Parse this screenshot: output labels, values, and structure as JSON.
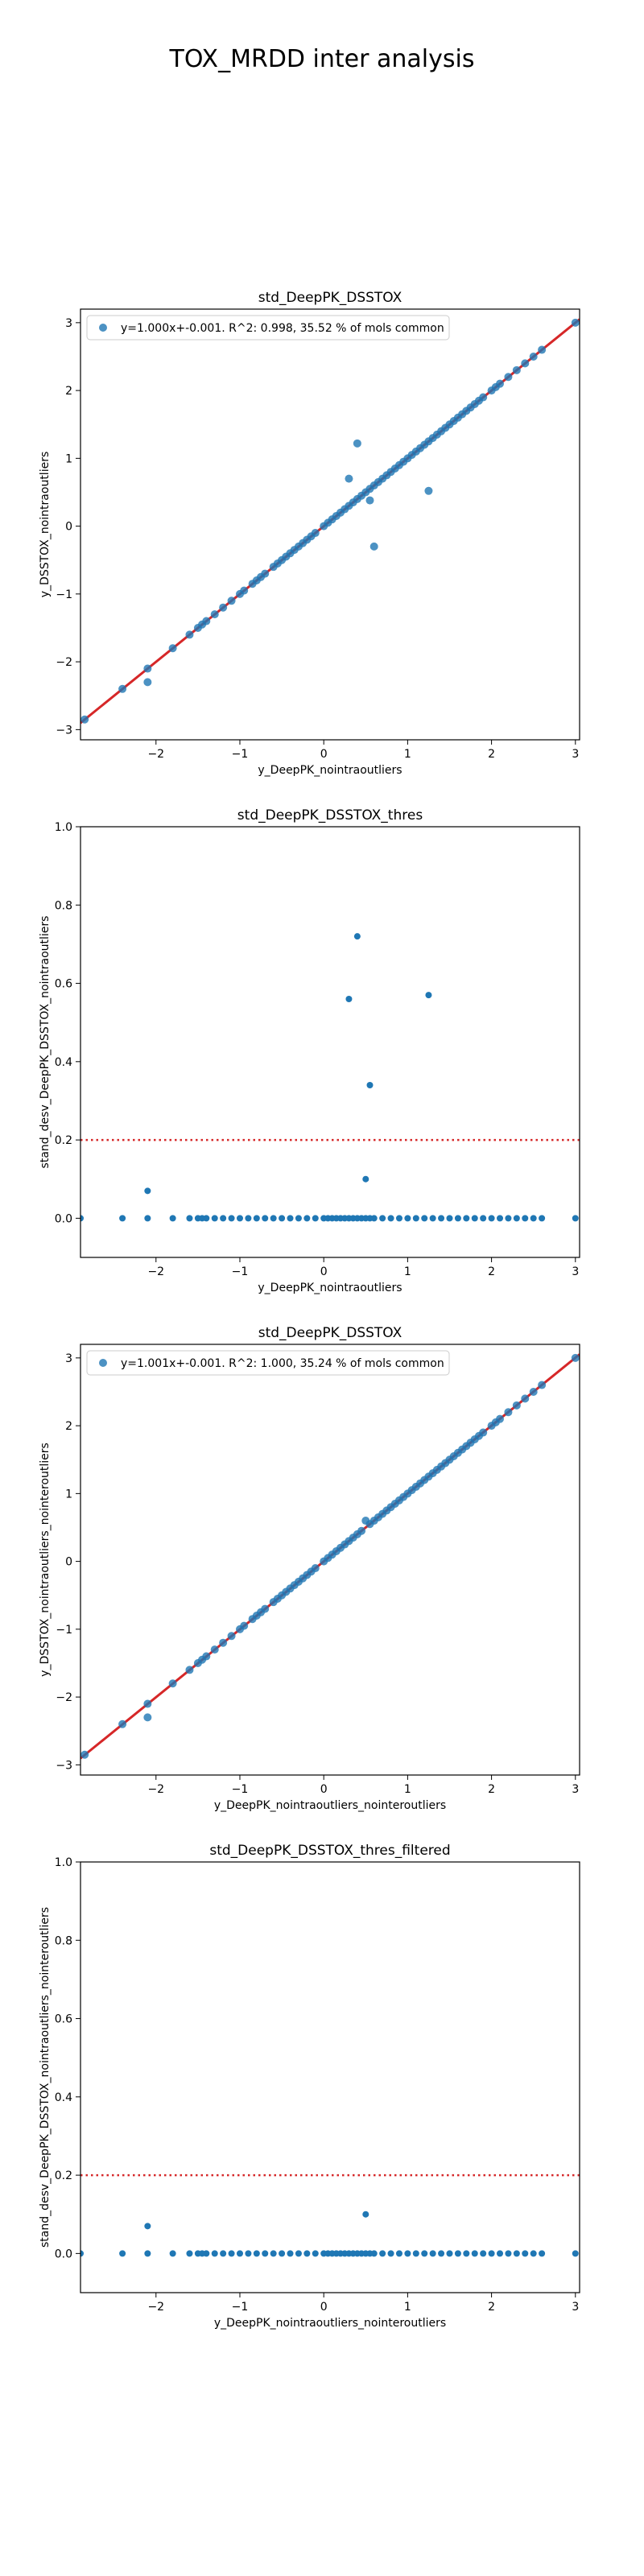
{
  "suptitle": "TOX_MRDD inter analysis",
  "colors": {
    "points": "#1f77b4",
    "fit_line": "#d62728",
    "threshold": "#d62728"
  },
  "chart_data": [
    {
      "type": "scatter",
      "title": "std_DeepPK_DSSTOX",
      "xlabel": "y_DeepPK_nointraoutliers",
      "ylabel": "y_DSSTOX_nointraoutliers",
      "xlim": [
        -2.9,
        3.05
      ],
      "ylim": [
        -3.15,
        3.2
      ],
      "xticks": [
        -2,
        -1,
        0,
        1,
        2,
        3
      ],
      "yticks": [
        -3,
        -2,
        -1,
        0,
        1,
        2,
        3
      ],
      "legend": {
        "label": "y=1.000x+-0.001. R^2: 0.998, 35.52 % of mols common",
        "placement": "top-left"
      },
      "fit_line": {
        "slope": 1.0,
        "intercept": -0.001
      },
      "points": [
        [
          -2.85,
          -2.85
        ],
        [
          -2.4,
          -2.4
        ],
        [
          -2.1,
          -2.1
        ],
        [
          -2.1,
          -2.3
        ],
        [
          -1.8,
          -1.8
        ],
        [
          -1.6,
          -1.6
        ],
        [
          -1.5,
          -1.5
        ],
        [
          -1.45,
          -1.45
        ],
        [
          -1.4,
          -1.4
        ],
        [
          -1.3,
          -1.3
        ],
        [
          -1.2,
          -1.2
        ],
        [
          -1.1,
          -1.1
        ],
        [
          -1.0,
          -1.0
        ],
        [
          -0.95,
          -0.95
        ],
        [
          -0.85,
          -0.85
        ],
        [
          -0.8,
          -0.8
        ],
        [
          -0.75,
          -0.75
        ],
        [
          -0.7,
          -0.7
        ],
        [
          -0.6,
          -0.6
        ],
        [
          -0.55,
          -0.55
        ],
        [
          -0.5,
          -0.5
        ],
        [
          -0.45,
          -0.45
        ],
        [
          -0.4,
          -0.4
        ],
        [
          -0.35,
          -0.35
        ],
        [
          -0.3,
          -0.3
        ],
        [
          -0.25,
          -0.25
        ],
        [
          -0.2,
          -0.2
        ],
        [
          -0.15,
          -0.15
        ],
        [
          -0.1,
          -0.1
        ],
        [
          0.0,
          0.0
        ],
        [
          0.05,
          0.05
        ],
        [
          0.1,
          0.1
        ],
        [
          0.15,
          0.15
        ],
        [
          0.2,
          0.2
        ],
        [
          0.25,
          0.25
        ],
        [
          0.3,
          0.3
        ],
        [
          0.35,
          0.35
        ],
        [
          0.4,
          0.4
        ],
        [
          0.45,
          0.45
        ],
        [
          0.5,
          0.5
        ],
        [
          0.55,
          0.55
        ],
        [
          0.6,
          0.6
        ],
        [
          0.65,
          0.65
        ],
        [
          0.7,
          0.7
        ],
        [
          0.75,
          0.75
        ],
        [
          0.8,
          0.8
        ],
        [
          0.85,
          0.85
        ],
        [
          0.9,
          0.9
        ],
        [
          0.95,
          0.95
        ],
        [
          1.0,
          1.0
        ],
        [
          1.05,
          1.05
        ],
        [
          1.1,
          1.1
        ],
        [
          1.15,
          1.15
        ],
        [
          1.2,
          1.2
        ],
        [
          1.25,
          1.25
        ],
        [
          1.3,
          1.3
        ],
        [
          1.35,
          1.35
        ],
        [
          1.4,
          1.4
        ],
        [
          1.45,
          1.45
        ],
        [
          1.5,
          1.5
        ],
        [
          1.55,
          1.55
        ],
        [
          1.6,
          1.6
        ],
        [
          1.65,
          1.65
        ],
        [
          1.7,
          1.7
        ],
        [
          1.75,
          1.75
        ],
        [
          1.8,
          1.8
        ],
        [
          1.85,
          1.85
        ],
        [
          1.9,
          1.9
        ],
        [
          2.0,
          2.0
        ],
        [
          2.05,
          2.05
        ],
        [
          2.1,
          2.1
        ],
        [
          2.2,
          2.2
        ],
        [
          2.3,
          2.3
        ],
        [
          2.4,
          2.4
        ],
        [
          2.5,
          2.5
        ],
        [
          2.6,
          2.6
        ],
        [
          3.0,
          3.0
        ],
        [
          0.3,
          0.7
        ],
        [
          0.4,
          1.22
        ],
        [
          0.55,
          0.38
        ],
        [
          0.6,
          -0.3
        ],
        [
          1.25,
          0.52
        ]
      ]
    },
    {
      "type": "scatter",
      "title": "std_DeepPK_DSSTOX_thres",
      "xlabel": "y_DeepPK_nointraoutliers",
      "ylabel": "stand_desv_DeepPK_DSSTOX_nointraoutliers",
      "xlim": [
        -2.9,
        3.05
      ],
      "ylim": [
        -0.1,
        1.0
      ],
      "xticks": [
        -2,
        -1,
        0,
        1,
        2,
        3
      ],
      "yticks": [
        0.0,
        0.2,
        0.4,
        0.6,
        0.8,
        1.0
      ],
      "threshold": 0.2,
      "points": [
        [
          -2.9,
          0
        ],
        [
          -2.4,
          0
        ],
        [
          -2.1,
          0.07
        ],
        [
          -2.1,
          0
        ],
        [
          -1.8,
          0
        ],
        [
          -1.6,
          0
        ],
        [
          -1.5,
          0
        ],
        [
          -1.45,
          0
        ],
        [
          -1.4,
          0
        ],
        [
          -1.3,
          0
        ],
        [
          -1.2,
          0
        ],
        [
          -1.1,
          0
        ],
        [
          -1.0,
          0
        ],
        [
          -0.9,
          0
        ],
        [
          -0.8,
          0
        ],
        [
          -0.7,
          0
        ],
        [
          -0.6,
          0
        ],
        [
          -0.5,
          0
        ],
        [
          -0.4,
          0
        ],
        [
          -0.3,
          0
        ],
        [
          -0.2,
          0
        ],
        [
          -0.1,
          0
        ],
        [
          0.0,
          0
        ],
        [
          0.05,
          0
        ],
        [
          0.1,
          0
        ],
        [
          0.15,
          0
        ],
        [
          0.2,
          0
        ],
        [
          0.25,
          0
        ],
        [
          0.3,
          0
        ],
        [
          0.35,
          0
        ],
        [
          0.4,
          0
        ],
        [
          0.45,
          0
        ],
        [
          0.5,
          0
        ],
        [
          0.55,
          0
        ],
        [
          0.6,
          0
        ],
        [
          0.7,
          0
        ],
        [
          0.8,
          0
        ],
        [
          0.9,
          0
        ],
        [
          1.0,
          0
        ],
        [
          1.1,
          0
        ],
        [
          1.2,
          0
        ],
        [
          1.3,
          0
        ],
        [
          1.4,
          0
        ],
        [
          1.5,
          0
        ],
        [
          1.6,
          0
        ],
        [
          1.7,
          0
        ],
        [
          1.8,
          0
        ],
        [
          1.9,
          0
        ],
        [
          2.0,
          0
        ],
        [
          2.1,
          0
        ],
        [
          2.2,
          0
        ],
        [
          2.3,
          0
        ],
        [
          2.4,
          0
        ],
        [
          2.5,
          0
        ],
        [
          2.6,
          0
        ],
        [
          3.0,
          0
        ],
        [
          0.3,
          0.56
        ],
        [
          0.4,
          0.72
        ],
        [
          0.55,
          0.34
        ],
        [
          1.25,
          0.57
        ],
        [
          0.5,
          0.1
        ]
      ]
    },
    {
      "type": "scatter",
      "title": "std_DeepPK_DSSTOX",
      "xlabel": "y_DeepPK_nointraoutliers_nointeroutliers",
      "ylabel": "y_DSSTOX_nointraoutliers_nointeroutliers",
      "xlim": [
        -2.9,
        3.05
      ],
      "ylim": [
        -3.15,
        3.2
      ],
      "xticks": [
        -2,
        -1,
        0,
        1,
        2,
        3
      ],
      "yticks": [
        -3,
        -2,
        -1,
        0,
        1,
        2,
        3
      ],
      "legend": {
        "label": "y=1.001x+-0.001. R^2: 1.000, 35.24 % of mols common",
        "placement": "top-left"
      },
      "fit_line": {
        "slope": 1.001,
        "intercept": -0.001
      },
      "points": [
        [
          -2.85,
          -2.85
        ],
        [
          -2.4,
          -2.4
        ],
        [
          -2.1,
          -2.1
        ],
        [
          -2.1,
          -2.3
        ],
        [
          -1.8,
          -1.8
        ],
        [
          -1.6,
          -1.6
        ],
        [
          -1.5,
          -1.5
        ],
        [
          -1.45,
          -1.45
        ],
        [
          -1.4,
          -1.4
        ],
        [
          -1.3,
          -1.3
        ],
        [
          -1.2,
          -1.2
        ],
        [
          -1.1,
          -1.1
        ],
        [
          -1.0,
          -1.0
        ],
        [
          -0.95,
          -0.95
        ],
        [
          -0.85,
          -0.85
        ],
        [
          -0.8,
          -0.8
        ],
        [
          -0.75,
          -0.75
        ],
        [
          -0.7,
          -0.7
        ],
        [
          -0.6,
          -0.6
        ],
        [
          -0.55,
          -0.55
        ],
        [
          -0.5,
          -0.5
        ],
        [
          -0.45,
          -0.45
        ],
        [
          -0.4,
          -0.4
        ],
        [
          -0.35,
          -0.35
        ],
        [
          -0.3,
          -0.3
        ],
        [
          -0.25,
          -0.25
        ],
        [
          -0.2,
          -0.2
        ],
        [
          -0.15,
          -0.15
        ],
        [
          -0.1,
          -0.1
        ],
        [
          0.0,
          0.0
        ],
        [
          0.05,
          0.05
        ],
        [
          0.1,
          0.1
        ],
        [
          0.15,
          0.15
        ],
        [
          0.2,
          0.2
        ],
        [
          0.25,
          0.25
        ],
        [
          0.3,
          0.3
        ],
        [
          0.35,
          0.35
        ],
        [
          0.4,
          0.4
        ],
        [
          0.45,
          0.45
        ],
        [
          0.5,
          0.6
        ],
        [
          0.55,
          0.55
        ],
        [
          0.6,
          0.6
        ],
        [
          0.65,
          0.65
        ],
        [
          0.7,
          0.7
        ],
        [
          0.75,
          0.75
        ],
        [
          0.8,
          0.8
        ],
        [
          0.85,
          0.85
        ],
        [
          0.9,
          0.9
        ],
        [
          0.95,
          0.95
        ],
        [
          1.0,
          1.0
        ],
        [
          1.05,
          1.05
        ],
        [
          1.1,
          1.1
        ],
        [
          1.15,
          1.15
        ],
        [
          1.2,
          1.2
        ],
        [
          1.25,
          1.25
        ],
        [
          1.3,
          1.3
        ],
        [
          1.35,
          1.35
        ],
        [
          1.4,
          1.4
        ],
        [
          1.45,
          1.45
        ],
        [
          1.5,
          1.5
        ],
        [
          1.55,
          1.55
        ],
        [
          1.6,
          1.6
        ],
        [
          1.65,
          1.65
        ],
        [
          1.7,
          1.7
        ],
        [
          1.75,
          1.75
        ],
        [
          1.8,
          1.8
        ],
        [
          1.85,
          1.85
        ],
        [
          1.9,
          1.9
        ],
        [
          2.0,
          2.0
        ],
        [
          2.05,
          2.05
        ],
        [
          2.1,
          2.1
        ],
        [
          2.2,
          2.2
        ],
        [
          2.3,
          2.3
        ],
        [
          2.4,
          2.4
        ],
        [
          2.5,
          2.5
        ],
        [
          2.6,
          2.6
        ],
        [
          3.0,
          3.0
        ]
      ]
    },
    {
      "type": "scatter",
      "title": "std_DeepPK_DSSTOX_thres_filtered",
      "xlabel": "y_DeepPK_nointraoutliers_nointeroutliers",
      "ylabel": "stand_desv_DeepPK_DSSTOX_nointraoutliers_nointeroutliers",
      "xlim": [
        -2.9,
        3.05
      ],
      "ylim": [
        -0.1,
        1.0
      ],
      "xticks": [
        -2,
        -1,
        0,
        1,
        2,
        3
      ],
      "yticks": [
        0.0,
        0.2,
        0.4,
        0.6,
        0.8,
        1.0
      ],
      "threshold": 0.2,
      "points": [
        [
          -2.9,
          0
        ],
        [
          -2.4,
          0
        ],
        [
          -2.1,
          0.07
        ],
        [
          -2.1,
          0
        ],
        [
          -1.8,
          0
        ],
        [
          -1.6,
          0
        ],
        [
          -1.5,
          0
        ],
        [
          -1.45,
          0
        ],
        [
          -1.4,
          0
        ],
        [
          -1.3,
          0
        ],
        [
          -1.2,
          0
        ],
        [
          -1.1,
          0
        ],
        [
          -1.0,
          0
        ],
        [
          -0.9,
          0
        ],
        [
          -0.8,
          0
        ],
        [
          -0.7,
          0
        ],
        [
          -0.6,
          0
        ],
        [
          -0.5,
          0
        ],
        [
          -0.4,
          0
        ],
        [
          -0.3,
          0
        ],
        [
          -0.2,
          0
        ],
        [
          -0.1,
          0
        ],
        [
          0.0,
          0
        ],
        [
          0.05,
          0
        ],
        [
          0.1,
          0
        ],
        [
          0.15,
          0
        ],
        [
          0.2,
          0
        ],
        [
          0.25,
          0
        ],
        [
          0.3,
          0
        ],
        [
          0.35,
          0
        ],
        [
          0.4,
          0
        ],
        [
          0.45,
          0
        ],
        [
          0.5,
          0
        ],
        [
          0.55,
          0
        ],
        [
          0.6,
          0
        ],
        [
          0.7,
          0
        ],
        [
          0.8,
          0
        ],
        [
          0.9,
          0
        ],
        [
          1.0,
          0
        ],
        [
          1.1,
          0
        ],
        [
          1.2,
          0
        ],
        [
          1.3,
          0
        ],
        [
          1.4,
          0
        ],
        [
          1.5,
          0
        ],
        [
          1.6,
          0
        ],
        [
          1.7,
          0
        ],
        [
          1.8,
          0
        ],
        [
          1.9,
          0
        ],
        [
          2.0,
          0
        ],
        [
          2.1,
          0
        ],
        [
          2.2,
          0
        ],
        [
          2.3,
          0
        ],
        [
          2.4,
          0
        ],
        [
          2.5,
          0
        ],
        [
          2.6,
          0
        ],
        [
          3.0,
          0
        ],
        [
          0.5,
          0.1
        ]
      ]
    }
  ]
}
